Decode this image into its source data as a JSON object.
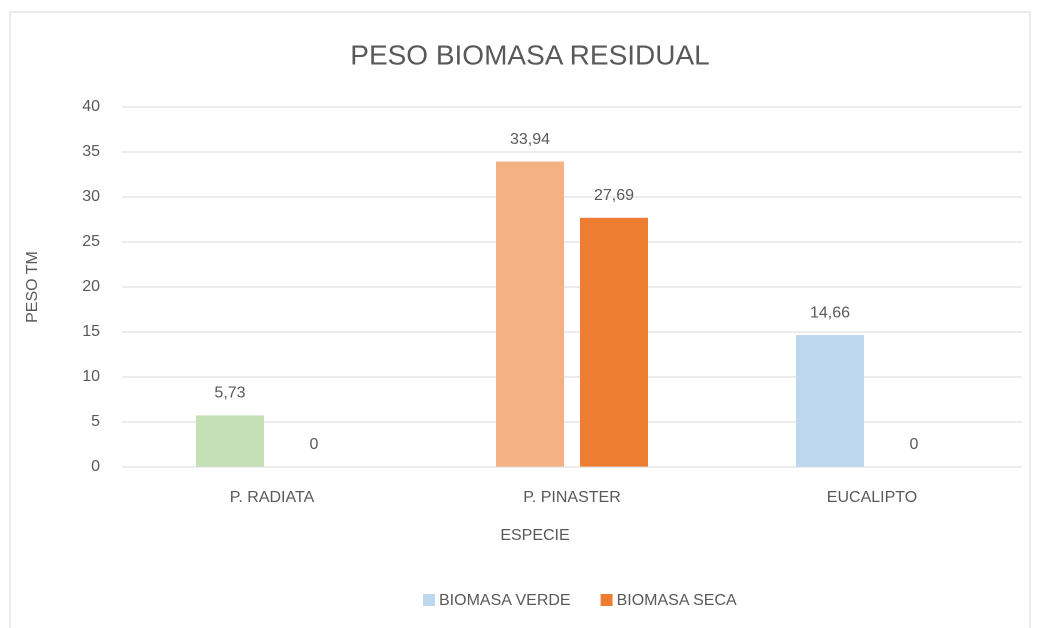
{
  "chart_data": {
    "type": "bar",
    "title": "PESO BIOMASA RESIDUAL",
    "x_label": "ESPECIE",
    "y_label": "PESO TM",
    "categories": [
      "P. RADIATA",
      "P. PINASTER",
      "EUCALIPTO"
    ],
    "series": [
      {
        "name": "BIOMASA VERDE",
        "color": "#bdd7ee",
        "colors": [
          "#c5e0b4",
          "#f4b183",
          "#bdd7ee"
        ],
        "values": [
          5.73,
          33.94,
          14.66
        ],
        "value_labels": [
          "5,73",
          "33,94",
          "14,66"
        ]
      },
      {
        "name": "BIOMASA SECA",
        "color": "#ed7d31",
        "values": [
          0,
          27.69,
          0
        ],
        "value_labels": [
          "0",
          "27,69",
          "0"
        ]
      }
    ],
    "ylim": [
      0,
      40
    ],
    "yticks": [
      0,
      5,
      10,
      15,
      20,
      25,
      30,
      35,
      40
    ],
    "grid": true,
    "legend": "bottom"
  }
}
